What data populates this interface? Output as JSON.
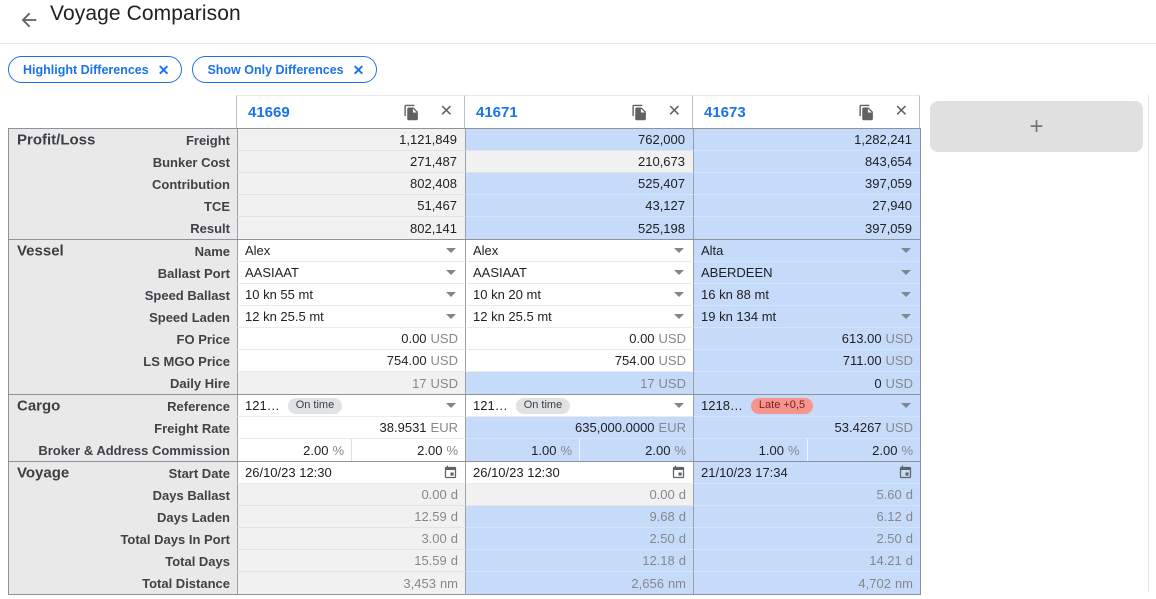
{
  "header": {
    "title": "Voyage Comparison"
  },
  "filters": {
    "chips": [
      {
        "label": "Highlight Differences"
      },
      {
        "label": "Show Only Differences"
      }
    ]
  },
  "colors": {
    "accent": "#1a73e8",
    "diff_highlight": "#c6dbfa",
    "readonly_bg": "#f1f1f1",
    "label_column_bg": "#e9e9e9",
    "badge_ontime_bg": "#e0e2e3",
    "badge_late_bg": "#f6958c"
  },
  "comparison": {
    "add_label": "+",
    "columns": [
      {
        "id": "41669"
      },
      {
        "id": "41671"
      },
      {
        "id": "41673"
      }
    ],
    "sections": [
      {
        "name": "Profit/Loss",
        "rows": [
          {
            "label": "Freight",
            "type": "number",
            "cells": [
              {
                "v": "1,121,849",
                "bg": "grey",
                "editable": false
              },
              {
                "v": "762,000",
                "bg": "blue",
                "editable": false
              },
              {
                "v": "1,282,241",
                "bg": "blue",
                "editable": false
              }
            ]
          },
          {
            "label": "Bunker Cost",
            "type": "number",
            "cells": [
              {
                "v": "271,487",
                "bg": "grey",
                "editable": false
              },
              {
                "v": "210,673",
                "bg": "grey",
                "editable": false
              },
              {
                "v": "843,654",
                "bg": "blue",
                "editable": false
              }
            ]
          },
          {
            "label": "Contribution",
            "type": "number",
            "cells": [
              {
                "v": "802,408",
                "bg": "grey",
                "editable": false
              },
              {
                "v": "525,407",
                "bg": "blue",
                "editable": false
              },
              {
                "v": "397,059",
                "bg": "blue",
                "editable": false
              }
            ]
          },
          {
            "label": "TCE",
            "type": "number",
            "cells": [
              {
                "v": "51,467",
                "bg": "grey",
                "editable": false
              },
              {
                "v": "43,127",
                "bg": "blue",
                "editable": false
              },
              {
                "v": "27,940",
                "bg": "blue",
                "editable": false
              }
            ]
          },
          {
            "label": "Result",
            "type": "number",
            "cells": [
              {
                "v": "802,141",
                "bg": "grey",
                "editable": false
              },
              {
                "v": "525,198",
                "bg": "blue",
                "editable": false
              },
              {
                "v": "397,059",
                "bg": "blue",
                "editable": false
              }
            ]
          }
        ]
      },
      {
        "name": "Vessel",
        "rows": [
          {
            "label": "Name",
            "type": "dropdown",
            "cells": [
              {
                "v": "Alex",
                "bg": "white",
                "editable": true
              },
              {
                "v": "Alex",
                "bg": "white",
                "editable": true
              },
              {
                "v": "Alta",
                "bg": "blue",
                "editable": true
              }
            ]
          },
          {
            "label": "Ballast Port",
            "type": "dropdown",
            "cells": [
              {
                "v": "AASIAAT",
                "bg": "white",
                "editable": true
              },
              {
                "v": "AASIAAT",
                "bg": "white",
                "editable": true
              },
              {
                "v": "ABERDEEN",
                "bg": "blue",
                "editable": true
              }
            ]
          },
          {
            "label": "Speed Ballast",
            "type": "dropdown",
            "cells": [
              {
                "v": "10 kn 55 mt",
                "bg": "white",
                "editable": true
              },
              {
                "v": "10 kn 20 mt",
                "bg": "white",
                "editable": true
              },
              {
                "v": "16 kn 88 mt",
                "bg": "blue",
                "editable": true
              }
            ]
          },
          {
            "label": "Speed Laden",
            "type": "dropdown",
            "cells": [
              {
                "v": "12 kn 25.5 mt",
                "bg": "white",
                "editable": true
              },
              {
                "v": "12 kn 25.5 mt",
                "bg": "white",
                "editable": true
              },
              {
                "v": "19 kn 134 mt",
                "bg": "blue",
                "editable": true
              }
            ]
          },
          {
            "label": "FO Price",
            "type": "number",
            "cells": [
              {
                "v": "0.00",
                "unit": "USD",
                "bg": "white",
                "editable": true
              },
              {
                "v": "0.00",
                "unit": "USD",
                "bg": "white",
                "editable": true
              },
              {
                "v": "613.00",
                "unit": "USD",
                "bg": "blue",
                "editable": true
              }
            ]
          },
          {
            "label": "LS MGO Price",
            "type": "number",
            "cells": [
              {
                "v": "754.00",
                "unit": "USD",
                "bg": "white",
                "editable": true
              },
              {
                "v": "754.00",
                "unit": "USD",
                "bg": "white",
                "editable": true
              },
              {
                "v": "711.00",
                "unit": "USD",
                "bg": "blue",
                "editable": true
              }
            ]
          },
          {
            "label": "Daily Hire",
            "type": "number",
            "cells": [
              {
                "v": "17",
                "unit": "USD",
                "bg": "grey",
                "muted": true,
                "editable": false
              },
              {
                "v": "17",
                "unit": "USD",
                "bg": "blue",
                "muted": true,
                "editable": false
              },
              {
                "v": "0",
                "unit": "USD",
                "bg": "blue",
                "editable": true
              }
            ]
          }
        ]
      },
      {
        "name": "Cargo",
        "rows": [
          {
            "label": "Reference",
            "type": "reference",
            "cells": [
              {
                "v": "121…",
                "badge": {
                  "text": "On time",
                  "style": "ontime"
                },
                "bg": "white",
                "editable": true
              },
              {
                "v": "121…",
                "badge": {
                  "text": "On time",
                  "style": "ontime"
                },
                "bg": "white",
                "editable": true
              },
              {
                "v": "1218…",
                "badge": {
                  "text": "Late +0,5",
                  "style": "late"
                },
                "bg": "blue",
                "editable": true
              }
            ]
          },
          {
            "label": "Freight Rate",
            "type": "number",
            "cells": [
              {
                "v": "38.9531",
                "unit": "EUR",
                "bg": "white",
                "editable": true
              },
              {
                "v": "635,000.0000",
                "unit": "EUR",
                "bg": "blue",
                "editable": true
              },
              {
                "v": "53.4267",
                "unit": "USD",
                "bg": "blue",
                "editable": true
              }
            ]
          },
          {
            "label": "Broker & Address Commission",
            "type": "dual",
            "cells": [
              {
                "v1": "2.00",
                "v2": "2.00",
                "unit": "%",
                "bg": "white",
                "editable": true
              },
              {
                "v1": "1.00",
                "v2": "2.00",
                "unit": "%",
                "bg": "blue",
                "editable": true
              },
              {
                "v1": "1.00",
                "v2": "2.00",
                "unit": "%",
                "bg": "blue",
                "editable": true
              }
            ]
          }
        ]
      },
      {
        "name": "Voyage",
        "rows": [
          {
            "label": "Start Date",
            "type": "date",
            "cells": [
              {
                "v": "26/10/23 12:30",
                "bg": "white",
                "editable": true
              },
              {
                "v": "26/10/23 12:30",
                "bg": "white",
                "editable": true
              },
              {
                "v": "21/10/23 17:34",
                "bg": "blue",
                "editable": true
              }
            ]
          },
          {
            "label": "Days Ballast",
            "type": "number",
            "cells": [
              {
                "v": "0.00",
                "unit": "d",
                "bg": "grey",
                "muted": true,
                "editable": false
              },
              {
                "v": "0.00",
                "unit": "d",
                "bg": "grey",
                "muted": true,
                "editable": false
              },
              {
                "v": "5.60",
                "unit": "d",
                "bg": "blue",
                "muted": true,
                "editable": false
              }
            ]
          },
          {
            "label": "Days Laden",
            "type": "number",
            "cells": [
              {
                "v": "12.59",
                "unit": "d",
                "bg": "grey",
                "muted": true,
                "editable": false
              },
              {
                "v": "9.68",
                "unit": "d",
                "bg": "blue",
                "muted": true,
                "editable": false
              },
              {
                "v": "6.12",
                "unit": "d",
                "bg": "blue",
                "muted": true,
                "editable": false
              }
            ]
          },
          {
            "label": "Total Days In Port",
            "type": "number",
            "cells": [
              {
                "v": "3.00",
                "unit": "d",
                "bg": "grey",
                "muted": true,
                "editable": false
              },
              {
                "v": "2.50",
                "unit": "d",
                "bg": "blue",
                "muted": true,
                "editable": false
              },
              {
                "v": "2.50",
                "unit": "d",
                "bg": "blue",
                "muted": true,
                "editable": false
              }
            ]
          },
          {
            "label": "Total Days",
            "type": "number",
            "cells": [
              {
                "v": "15.59",
                "unit": "d",
                "bg": "grey",
                "muted": true,
                "editable": false
              },
              {
                "v": "12.18",
                "unit": "d",
                "bg": "blue",
                "muted": true,
                "editable": false
              },
              {
                "v": "14.21",
                "unit": "d",
                "bg": "blue",
                "muted": true,
                "editable": false
              }
            ]
          },
          {
            "label": "Total Distance",
            "type": "number",
            "cells": [
              {
                "v": "3,453",
                "unit": "nm",
                "bg": "grey",
                "muted": true,
                "editable": false
              },
              {
                "v": "2,656",
                "unit": "nm",
                "bg": "blue",
                "muted": true,
                "editable": false
              },
              {
                "v": "4,702",
                "unit": "nm",
                "bg": "blue",
                "muted": true,
                "editable": false
              }
            ]
          }
        ]
      }
    ]
  }
}
